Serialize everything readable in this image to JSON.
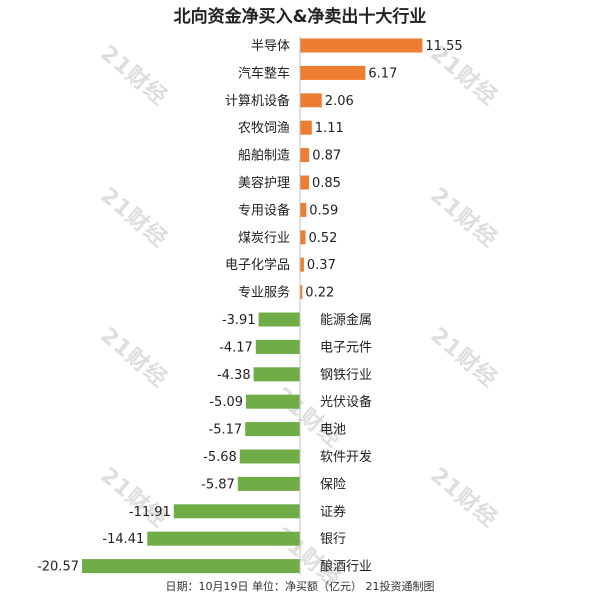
{
  "chart_data": {
    "type": "bar",
    "orientation": "horizontal",
    "title": "北向资金净买入&净卖出十大行业",
    "categories": [
      "半导体",
      "汽车整车",
      "计算机设备",
      "农牧饲渔",
      "船舶制造",
      "美容护理",
      "专用设备",
      "煤炭行业",
      "电子化学品",
      "专业服务",
      "能源金属",
      "电子元件",
      "钢铁行业",
      "光伏设备",
      "电池",
      "软件开发",
      "保险",
      "证券",
      "银行",
      "酿酒行业"
    ],
    "value_labels": [
      "11.55",
      "6.17",
      "2.06",
      "1.11",
      "0.87",
      "0.85",
      "0.59",
      "0.52",
      "0.37",
      "0.22",
      "-3.91",
      "-4.17",
      "-4.38",
      "-5.09",
      "-5.17",
      "-5.68",
      "-5.87",
      "-11.91",
      "-14.41",
      "-20.57"
    ],
    "values": [
      11.55,
      6.17,
      2.06,
      1.11,
      0.87,
      0.85,
      0.59,
      0.52,
      0.37,
      0.22,
      -3.91,
      -4.17,
      -4.38,
      -5.09,
      -5.17,
      -5.68,
      -5.87,
      -11.91,
      -14.41,
      -20.57
    ],
    "colors": {
      "positive": "#ED7D31",
      "negative": "#70AD47"
    },
    "grid": false,
    "legend": "none"
  },
  "footer": "日期：10月19日 单位：净买额（亿元） 21投资通制图",
  "watermark": "21财经"
}
